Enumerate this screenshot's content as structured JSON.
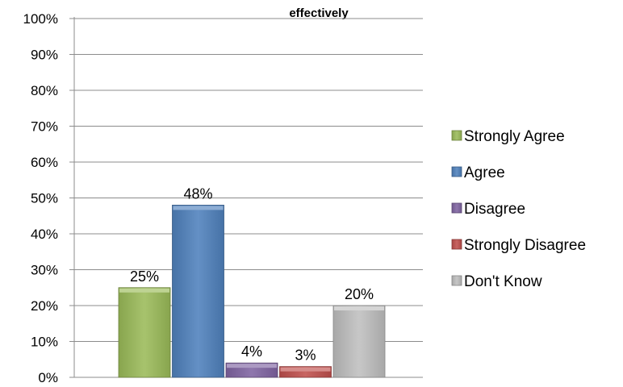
{
  "chart_data": {
    "type": "bar",
    "title": "effectively",
    "categories": [
      "Strongly Agree",
      "Agree",
      "Disagree",
      "Strongly Disagree",
      "Don't Know"
    ],
    "values": [
      25,
      48,
      4,
      3,
      20
    ],
    "value_labels": [
      "25%",
      "48%",
      "4%",
      "3%",
      "20%"
    ],
    "ylim": [
      0,
      100
    ],
    "y_ticks": [
      "0%",
      "10%",
      "20%",
      "30%",
      "40%",
      "50%",
      "60%",
      "70%",
      "80%",
      "90%",
      "100%"
    ],
    "grid": true,
    "legend_position": "right",
    "colors": [
      "#9bbb59",
      "#4f81bd",
      "#8064a2",
      "#c0504d",
      "#bfbfbf"
    ]
  }
}
